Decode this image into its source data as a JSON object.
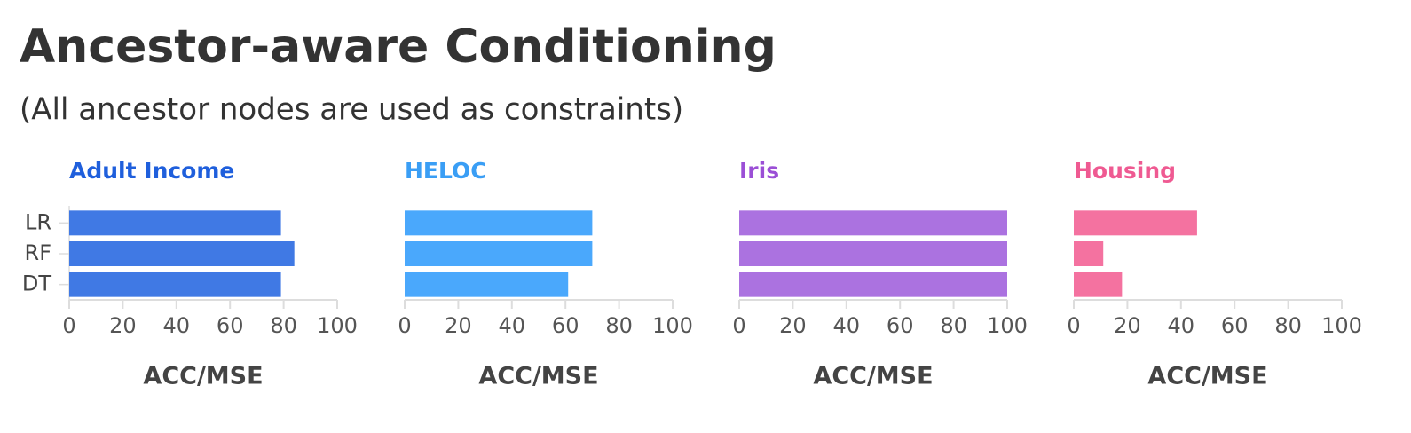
{
  "title": "Ancestor-aware Conditioning",
  "subtitle": "(All ancestor nodes are used as constraints)",
  "categories": [
    "LR",
    "RF",
    "DT"
  ],
  "chart_data": [
    {
      "type": "bar",
      "orientation": "horizontal",
      "title": "Adult Income",
      "title_color": "#1f5fdc",
      "color": "#4079e4",
      "values": [
        79,
        84,
        79
      ],
      "xlim": [
        0,
        100
      ],
      "xticks": [
        0,
        20,
        40,
        60,
        80,
        100
      ],
      "xlabel": "ACC/MSE"
    },
    {
      "type": "bar",
      "orientation": "horizontal",
      "title": "HELOC",
      "title_color": "#3a9ef5",
      "color": "#4aa8fc",
      "values": [
        70,
        70,
        61
      ],
      "xlim": [
        0,
        100
      ],
      "xticks": [
        0,
        20,
        40,
        60,
        80,
        100
      ],
      "xlabel": "ACC/MSE"
    },
    {
      "type": "bar",
      "orientation": "horizontal",
      "title": "Iris",
      "title_color": "#9b4fd6",
      "color": "#ab72e0",
      "values": [
        100,
        100,
        100
      ],
      "xlim": [
        0,
        100
      ],
      "xticks": [
        0,
        20,
        40,
        60,
        80,
        100
      ],
      "xlabel": "ACC/MSE"
    },
    {
      "type": "bar",
      "orientation": "horizontal",
      "title": "Housing",
      "title_color": "#ef5a92",
      "color": "#f472a0",
      "values": [
        46,
        11,
        18
      ],
      "xlim": [
        0,
        100
      ],
      "xticks": [
        0,
        20,
        40,
        60,
        80,
        100
      ],
      "xlabel": "ACC/MSE"
    }
  ]
}
